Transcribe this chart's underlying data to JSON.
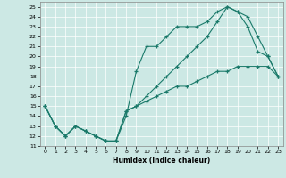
{
  "xlabel": "Humidex (Indice chaleur)",
  "xlim": [
    -0.5,
    23.5
  ],
  "ylim": [
    11,
    25.5
  ],
  "yticks": [
    11,
    12,
    13,
    14,
    15,
    16,
    17,
    18,
    19,
    20,
    21,
    22,
    23,
    24,
    25
  ],
  "xticks": [
    0,
    1,
    2,
    3,
    4,
    5,
    6,
    7,
    8,
    9,
    10,
    11,
    12,
    13,
    14,
    15,
    16,
    17,
    18,
    19,
    20,
    21,
    22,
    23
  ],
  "bg_color": "#cce8e4",
  "line_color": "#1a7a6a",
  "line1_x": [
    0,
    1,
    2,
    3,
    4,
    5,
    6,
    7,
    8,
    9,
    10,
    11,
    12,
    13,
    14,
    15,
    16,
    17,
    18,
    19,
    20,
    21,
    22,
    23
  ],
  "line1_y": [
    15,
    13,
    12,
    13,
    12.5,
    12,
    11.5,
    11.5,
    14,
    18.5,
    21,
    21,
    22,
    23,
    23,
    23,
    23.5,
    24.5,
    25,
    24.5,
    23,
    20.5,
    20,
    18
  ],
  "line2_x": [
    0,
    1,
    2,
    3,
    4,
    5,
    6,
    7,
    8,
    9,
    10,
    11,
    12,
    13,
    14,
    15,
    16,
    17,
    18,
    19,
    20,
    21,
    22,
    23
  ],
  "line2_y": [
    15,
    13,
    12,
    13,
    12.5,
    12,
    11.5,
    11.5,
    14.5,
    15,
    15.5,
    16,
    16.5,
    17,
    17,
    17.5,
    18,
    18.5,
    18.5,
    19,
    19,
    19,
    19,
    18
  ],
  "line3_x": [
    0,
    1,
    2,
    3,
    4,
    5,
    6,
    7,
    8,
    9,
    10,
    11,
    12,
    13,
    14,
    15,
    16,
    17,
    18,
    19,
    20,
    21,
    22,
    23
  ],
  "line3_y": [
    15,
    13,
    12,
    13,
    12.5,
    12,
    11.5,
    11.5,
    14.5,
    15,
    16,
    17,
    18,
    19,
    20,
    21,
    22,
    23.5,
    25,
    24.5,
    24,
    22,
    20,
    18
  ]
}
